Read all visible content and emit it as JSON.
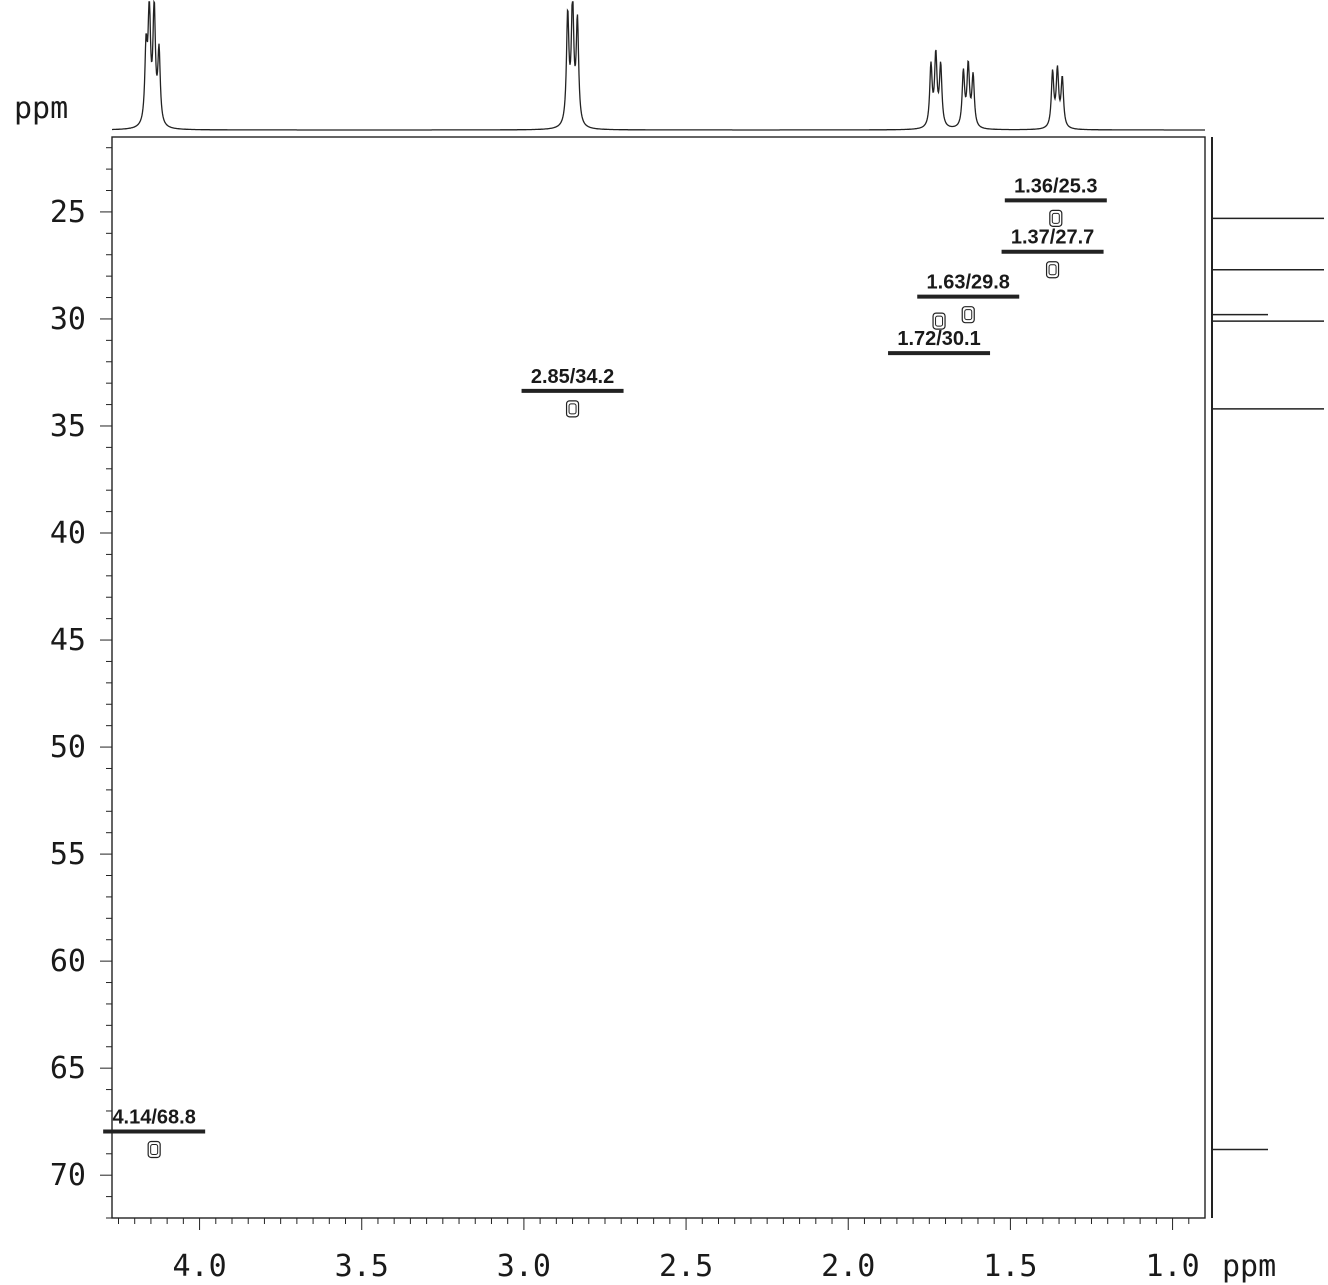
{
  "chart_data": {
    "type": "scatter",
    "x_axis": {
      "unit_label": "ppm",
      "range": [
        4.27,
        0.9
      ],
      "reversed": true,
      "tick_labels": [
        "4.0",
        "3.5",
        "3.0",
        "2.5",
        "2.0",
        "1.5",
        "1.0"
      ],
      "tick_values": [
        4.0,
        3.5,
        3.0,
        2.5,
        2.0,
        1.5,
        1.0
      ]
    },
    "y_axis": {
      "unit_label": "ppm",
      "range": [
        21.5,
        72
      ],
      "reversed": true,
      "tick_labels": [
        "25",
        "30",
        "35",
        "40",
        "45",
        "50",
        "55",
        "60",
        "65",
        "70"
      ],
      "tick_values": [
        25,
        30,
        35,
        40,
        45,
        50,
        55,
        60,
        65,
        70
      ]
    },
    "grid": false,
    "cross_peaks": [
      {
        "x": 1.36,
        "y": 25.3,
        "label": "1.36/25.3",
        "label_side": "above"
      },
      {
        "x": 1.37,
        "y": 27.7,
        "label": "1.37/27.7",
        "label_side": "above"
      },
      {
        "x": 1.63,
        "y": 29.8,
        "label": "1.63/29.8",
        "label_side": "above"
      },
      {
        "x": 1.72,
        "y": 30.1,
        "label": "1.72/30.1",
        "label_side": "below"
      },
      {
        "x": 2.85,
        "y": 34.2,
        "label": "2.85/34.2",
        "label_side": "above"
      },
      {
        "x": 4.14,
        "y": 68.8,
        "label": "4.14/68.8",
        "label_side": "above"
      }
    ],
    "top_projection_peaks": [
      {
        "x": 4.165,
        "height": 0.6
      },
      {
        "x": 4.155,
        "height": 0.92
      },
      {
        "x": 4.14,
        "height": 0.95
      },
      {
        "x": 4.125,
        "height": 0.6
      },
      {
        "x": 2.865,
        "height": 0.9
      },
      {
        "x": 2.85,
        "height": 1.0
      },
      {
        "x": 2.835,
        "height": 0.85
      },
      {
        "x": 1.745,
        "height": 0.5
      },
      {
        "x": 1.73,
        "height": 0.58
      },
      {
        "x": 1.715,
        "height": 0.5
      },
      {
        "x": 1.645,
        "height": 0.45
      },
      {
        "x": 1.63,
        "height": 0.5
      },
      {
        "x": 1.615,
        "height": 0.42
      },
      {
        "x": 1.37,
        "height": 0.45
      },
      {
        "x": 1.355,
        "height": 0.46
      },
      {
        "x": 1.34,
        "height": 0.4
      }
    ],
    "right_projection_peaks": [
      {
        "y": 25.3,
        "height": 1.0
      },
      {
        "y": 27.7,
        "height": 1.0
      },
      {
        "y": 29.8,
        "height": 0.5
      },
      {
        "y": 30.1,
        "height": 1.0
      },
      {
        "y": 34.2,
        "height": 1.0
      },
      {
        "y": 68.8,
        "height": 0.5
      }
    ]
  }
}
